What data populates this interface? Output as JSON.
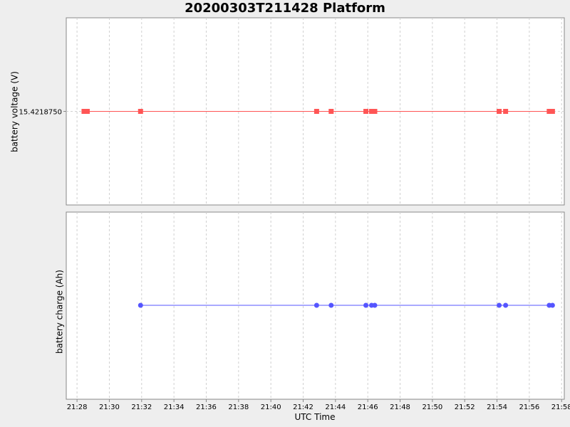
{
  "chart_data": [
    {
      "type": "line",
      "title": "20200303T211428 Platform",
      "xlabel": "UTC Time",
      "ylabel": "battery voltage (V)",
      "x_ticks": [
        "21:28",
        "21:30",
        "21:32",
        "21:34",
        "21:36",
        "21:38",
        "21:40",
        "21:42",
        "21:44",
        "21:46",
        "21:48",
        "21:50",
        "21:52",
        "21:54",
        "21:56",
        "21:58"
      ],
      "y_ticks": [
        "15.4218750"
      ],
      "xlim": [
        "21:27:20",
        "21:58:10"
      ],
      "grid": true,
      "marker": "square",
      "color": "#ff5555",
      "x": [
        "21:28:26",
        "21:28:38",
        "21:31:56",
        "21:42:50",
        "21:43:44",
        "21:45:53",
        "21:46:14",
        "21:46:26",
        "21:54:08",
        "21:54:32",
        "21:57:14",
        "21:57:26"
      ],
      "y": [
        15.421875,
        15.421875,
        15.421875,
        15.421875,
        15.421875,
        15.421875,
        15.421875,
        15.421875,
        15.421875,
        15.421875,
        15.421875,
        15.421875
      ]
    },
    {
      "type": "line",
      "xlabel": "UTC Time",
      "ylabel": "battery charge (Ah)",
      "x_ticks": [
        "21:28",
        "21:30",
        "21:32",
        "21:34",
        "21:36",
        "21:38",
        "21:40",
        "21:42",
        "21:44",
        "21:46",
        "21:48",
        "21:50",
        "21:52",
        "21:54",
        "21:56",
        "21:58"
      ],
      "xlim": [
        "21:27:20",
        "21:58:10"
      ],
      "grid": true,
      "marker": "circle",
      "color": "#5555ff",
      "x": [
        "21:31:56",
        "21:42:50",
        "21:43:44",
        "21:45:53",
        "21:46:14",
        "21:46:26",
        "21:54:08",
        "21:54:32",
        "21:57:14",
        "21:57:26"
      ]
    }
  ]
}
